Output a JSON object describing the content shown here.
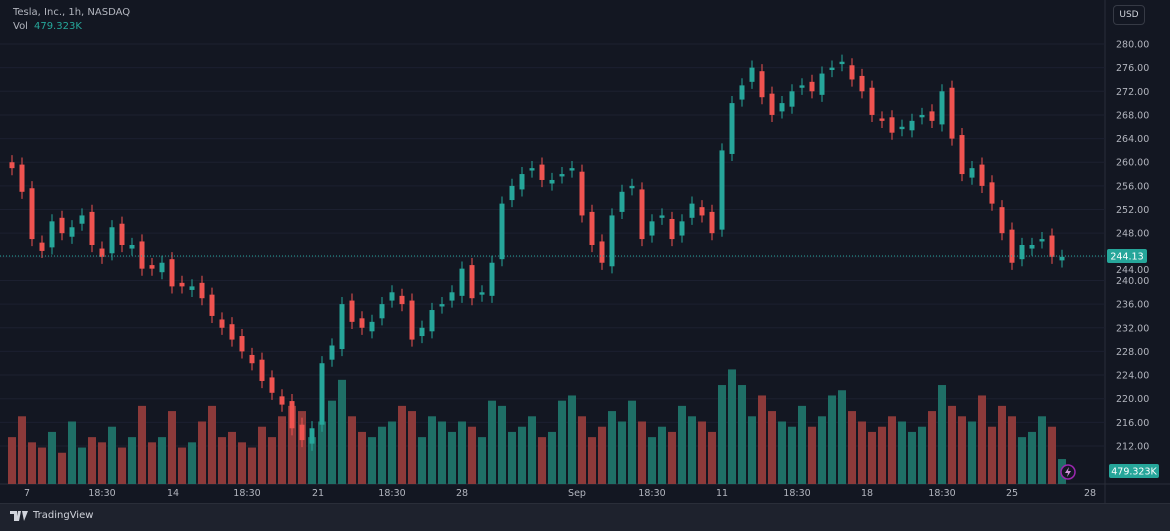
{
  "legend": {
    "title": "Tesla, Inc., 1h, NASDAQ",
    "vol_label": "Vol",
    "vol_value": "479.323K"
  },
  "currency_button": "USD",
  "footer": {
    "brand": "TradingView"
  },
  "colors": {
    "up": "#26a69a",
    "down": "#ef5350",
    "vol_up": "#1f6f66",
    "vol_down": "#8c3a3a",
    "background": "#131722"
  },
  "chart_data": {
    "type": "candlestick",
    "title": "Tesla, Inc., 1h, NASDAQ",
    "ylim": [
      208,
      282
    ],
    "y_ticks": [
      "212.00",
      "216.00",
      "220.00",
      "224.00",
      "228.00",
      "232.00",
      "236.00",
      "240.00",
      "244.00",
      "248.00",
      "252.00",
      "256.00",
      "260.00",
      "264.00",
      "268.00",
      "272.00",
      "276.00",
      "280.00"
    ],
    "x_ticks": [
      "7",
      "18:30",
      "14",
      "18:30",
      "21",
      "18:30",
      "28",
      "Sep",
      "18:30",
      "11",
      "18:30",
      "18",
      "18:30",
      "25",
      "28"
    ],
    "last_price": "244.13",
    "last_volume": "479.323K",
    "grid": true,
    "close": [
      259,
      255,
      247,
      245,
      250,
      248,
      249,
      251,
      246,
      244,
      249,
      246,
      246,
      242,
      242,
      243,
      239,
      239,
      239,
      237,
      234,
      232,
      230,
      228,
      226,
      223,
      221,
      219,
      215,
      213,
      215,
      226,
      229,
      236,
      233,
      232,
      233,
      236,
      238,
      236,
      230,
      232,
      235,
      236,
      238,
      242,
      237,
      238,
      243,
      253,
      256,
      258,
      259,
      257,
      257,
      258,
      259,
      251,
      246,
      243,
      251,
      255,
      256,
      247,
      250,
      251,
      247,
      250,
      253,
      251,
      248,
      262,
      270,
      273,
      276,
      271,
      268,
      270,
      272,
      273,
      272,
      275,
      276,
      277,
      274,
      272,
      268,
      267,
      265,
      266,
      267,
      268,
      267,
      272,
      264,
      258,
      259,
      256,
      253,
      248,
      243,
      246,
      246,
      247,
      244,
      244
    ],
    "volume_k": [
      900,
      1300,
      800,
      700,
      1000,
      600,
      1200,
      700,
      900,
      800,
      1100,
      700,
      900,
      1500,
      800,
      900,
      1400,
      700,
      800,
      1200,
      1500,
      900,
      1000,
      800,
      700,
      1100,
      900,
      1300,
      1500,
      1400,
      900,
      1200,
      1600,
      2000,
      1300,
      1000,
      900,
      1100,
      1200,
      1500,
      1400,
      900,
      1300,
      1200,
      1000,
      1200,
      1100,
      900,
      1600,
      1500,
      1000,
      1100,
      1300,
      900,
      1000,
      1600,
      1700,
      1300,
      900,
      1100,
      1400,
      1200,
      1600,
      1200,
      900,
      1100,
      1000,
      1500,
      1300,
      1200,
      1000,
      1900,
      2200,
      1900,
      1300,
      1700,
      1400,
      1200,
      1100,
      1500,
      1100,
      1300,
      1700,
      1800,
      1400,
      1200,
      1000,
      1100,
      1300,
      1200,
      1000,
      1100,
      1400,
      1900,
      1500,
      1300,
      1200,
      1700,
      1100,
      1500,
      1300,
      900,
      1000,
      1300,
      1100,
      479
    ]
  }
}
